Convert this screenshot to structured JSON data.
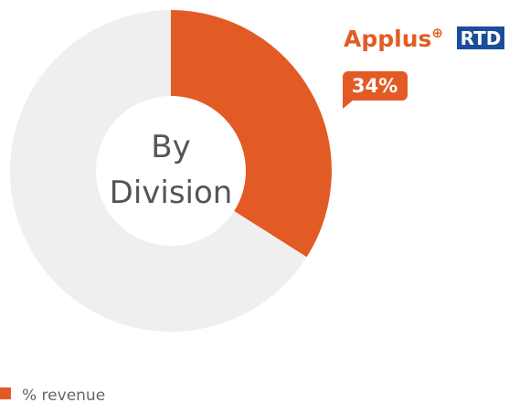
{
  "chart_data": {
    "type": "donut",
    "center_label": [
      "By",
      "Division"
    ],
    "values": [
      34,
      66
    ],
    "value_labels": [
      "34%",
      null
    ],
    "colors": [
      "#e35b24",
      "#efefef"
    ],
    "segment_label": {
      "brand": "Applus",
      "mark": "⊕",
      "division": "RTD"
    },
    "legend": {
      "name": "% revenue",
      "color": "#e35b24"
    }
  }
}
